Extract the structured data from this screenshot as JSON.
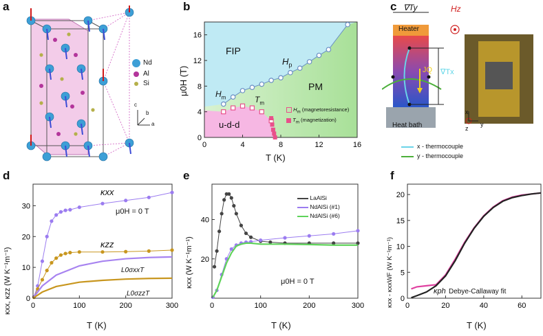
{
  "panels": {
    "a": "a",
    "b": "b",
    "c": "c",
    "d": "d",
    "e": "e",
    "f": "f"
  },
  "panel_a": {
    "legend": [
      {
        "label": "Nd",
        "color": "#3d9fd6"
      },
      {
        "label": "Al",
        "color": "#b3359b"
      },
      {
        "label": "Si",
        "color": "#b5b04a"
      }
    ],
    "axes": {
      "c": "c",
      "b": "b",
      "a": "a"
    }
  },
  "panel_b": {
    "region_labels": {
      "fip": "FIP",
      "pm": "PM",
      "udd": "u-d-d",
      "hp": "H",
      "hp_sub": "p",
      "hm": "H",
      "hm_sub": "m",
      "tm": "T",
      "tm_sub": "m"
    },
    "legend": {
      "hm": "(magnetoresistance)",
      "tm": "(magnetization)"
    },
    "xlabel": "T (K)",
    "ylabel": "μ0H (T)",
    "xticks": [
      "0",
      "4",
      "8",
      "12",
      "16"
    ],
    "yticks": [
      "0",
      "4",
      "8",
      "12",
      "16"
    ]
  },
  "panel_c": {
    "labels": {
      "gradTy": "∇Ty",
      "hz": "Hz",
      "heater": "Heater",
      "jq": "JQ",
      "gradTx": "∇Tx",
      "bath": "Heat bath",
      "x": "x",
      "y": "y",
      "z": "z"
    },
    "legend": [
      {
        "label": "x - thermocouple",
        "color": "#6ad3e8"
      },
      {
        "label": "y - thermocouple",
        "color": "#4caf3a"
      }
    ]
  },
  "panel_d": {
    "labels": {
      "kxx": "κxx",
      "kzz": "κzz",
      "field": "μ0H = 0 T",
      "l0xx": "L0σxxT",
      "l0zz": "L0σzzT"
    },
    "xlabel": "T (K)",
    "ylabel": "κxx, κzz (W K⁻¹m⁻¹)"
  },
  "panel_e": {
    "legend": [
      {
        "label": "LaAlSi",
        "color": "#444"
      },
      {
        "label": "NdAlSi (#1)",
        "color": "#9b7cf0"
      },
      {
        "label": "NdAlSi (#6)",
        "color": "#5fd35a"
      }
    ],
    "field": "μ0H = 0 T",
    "xlabel": "T (K)",
    "ylabel": "κxx (W K⁻¹m⁻¹)"
  },
  "panel_f": {
    "labels": {
      "kph": "κph",
      "fit": "Debye-Callaway fit"
    },
    "xlabel": "T (K)",
    "ylabel": "κxx - κxxWF (W K⁻¹m⁻¹)"
  },
  "chart_data": [
    {
      "type": "scatter",
      "panel": "b",
      "xlabel": "T (K)",
      "ylabel": "μ0H (T)",
      "xlim": [
        0,
        16
      ],
      "ylim": [
        0,
        18
      ],
      "series": [
        {
          "name": "Hm (magnetoresistance)",
          "marker": "open-square",
          "color": "#e8508a",
          "x": [
            2,
            3,
            4,
            5,
            6,
            7
          ],
          "y": [
            4.0,
            4.6,
            4.9,
            4.6,
            4.0,
            2.6
          ]
        },
        {
          "name": "Tm (magnetization)",
          "marker": "filled-square",
          "color": "#e8508a",
          "x": [
            7.0,
            7.1,
            7.2,
            7.3,
            7.4
          ],
          "y": [
            3,
            2,
            1.2,
            0.6,
            0
          ]
        },
        {
          "name": "Hp",
          "marker": "open-circle",
          "color": "#6a8fc4",
          "x": [
            2,
            3,
            4,
            5,
            6,
            7,
            8,
            9,
            10,
            11,
            12,
            13,
            15
          ],
          "y": [
            5.2,
            6.3,
            7.3,
            7.8,
            8.3,
            8.9,
            9.3,
            10.1,
            10.8,
            11.8,
            12.8,
            13.7,
            17.6
          ]
        }
      ]
    },
    {
      "type": "line",
      "panel": "d",
      "xlabel": "T (K)",
      "ylabel": "κxx, κzz (W K⁻¹m⁻¹)",
      "xlim": [
        0,
        300
      ],
      "ylim": [
        0,
        37
      ],
      "series": [
        {
          "name": "κxx",
          "color": "#9b7cf0",
          "x": [
            2,
            10,
            20,
            30,
            40,
            50,
            60,
            70,
            80,
            100,
            150,
            200,
            250,
            300
          ],
          "y": [
            0.5,
            4,
            12,
            20,
            25,
            27,
            28,
            28.5,
            28.7,
            29.5,
            30.7,
            31.7,
            32.7,
            34.3
          ]
        },
        {
          "name": "κzz",
          "color": "#c8961e",
          "x": [
            2,
            10,
            20,
            30,
            40,
            50,
            60,
            70,
            80,
            100,
            150,
            200,
            250,
            300
          ],
          "y": [
            0.3,
            3,
            6,
            9,
            11.5,
            13,
            14,
            14.5,
            14.8,
            15,
            15,
            15.1,
            15.3,
            15.6
          ]
        },
        {
          "name": "L0σxxT",
          "color": "#a783f0",
          "x": [
            0,
            20,
            50,
            100,
            150,
            200,
            250,
            300
          ],
          "y": [
            0,
            4,
            7.5,
            10.5,
            12,
            12.8,
            13.2,
            13.4
          ]
        },
        {
          "name": "L0σzzT",
          "color": "#c8961e",
          "x": [
            0,
            20,
            50,
            100,
            150,
            200,
            250,
            300
          ],
          "y": [
            0,
            2,
            3.8,
            5.2,
            5.8,
            6.2,
            6.4,
            6.5
          ]
        }
      ]
    },
    {
      "type": "line",
      "panel": "e",
      "xlabel": "T (K)",
      "ylabel": "κxx (W K⁻¹m⁻¹)",
      "xlim": [
        0,
        300
      ],
      "ylim": [
        0,
        58
      ],
      "series": [
        {
          "name": "LaAlSi",
          "color": "#444444",
          "x": [
            5,
            10,
            15,
            20,
            25,
            30,
            35,
            40,
            45,
            50,
            60,
            70,
            80,
            100,
            120,
            150,
            200,
            250,
            300
          ],
          "y": [
            16,
            24,
            34,
            43,
            50,
            53,
            53,
            51,
            47,
            43,
            37,
            33,
            31,
            29,
            28.5,
            28,
            28,
            28,
            28
          ]
        },
        {
          "name": "NdAlSi (#1)",
          "color": "#9b7cf0",
          "x": [
            2,
            10,
            20,
            30,
            40,
            50,
            60,
            70,
            80,
            100,
            150,
            200,
            250,
            300
          ],
          "y": [
            0.5,
            4,
            12,
            20,
            25,
            27,
            28,
            28.5,
            28.7,
            29.5,
            30.7,
            31.7,
            32.7,
            34.3
          ]
        },
        {
          "name": "NdAlSi (#6)",
          "color": "#5fd35a",
          "x": [
            2,
            10,
            20,
            30,
            40,
            50,
            60,
            70,
            80,
            100,
            150,
            200,
            250,
            300
          ],
          "y": [
            0.5,
            4,
            11,
            18,
            23,
            26.5,
            27.5,
            28,
            28,
            27.5,
            27.5,
            27.3,
            27,
            27
          ]
        }
      ]
    },
    {
      "type": "line",
      "panel": "f",
      "xlabel": "T (K)",
      "ylabel": "κxx - κxxWF (W K⁻¹m⁻¹)",
      "xlim": [
        0,
        70
      ],
      "ylim": [
        0,
        22
      ],
      "series": [
        {
          "name": "κph",
          "color": "#e040a0",
          "x": [
            2,
            5,
            10,
            15,
            20,
            25,
            30,
            35,
            40,
            45,
            50,
            55,
            60,
            65,
            70
          ],
          "y": [
            1.8,
            2.2,
            2.4,
            2.6,
            4.5,
            7.5,
            10.8,
            13.6,
            15.9,
            17.6,
            18.8,
            19.5,
            19.9,
            20.1,
            20.3
          ]
        },
        {
          "name": "Debye-Callaway fit",
          "color": "#222222",
          "x": [
            2,
            5,
            10,
            15,
            20,
            25,
            30,
            35,
            40,
            45,
            50,
            55,
            60,
            65,
            70
          ],
          "y": [
            0.1,
            0.5,
            1.2,
            2.4,
            4.3,
            7.2,
            10.6,
            13.5,
            15.8,
            17.5,
            18.7,
            19.4,
            19.8,
            20.1,
            20.3
          ]
        }
      ]
    }
  ],
  "axis_ticks": {
    "d_x": [
      "0",
      "100",
      "200",
      "300"
    ],
    "d_y": [
      "0",
      "10",
      "20",
      "30"
    ],
    "e_x": [
      "0",
      "100",
      "200",
      "300"
    ],
    "e_y": [
      "20",
      "40"
    ],
    "f_x": [
      "0",
      "20",
      "40",
      "60"
    ],
    "f_y": [
      "0",
      "5",
      "10",
      "15",
      "20"
    ]
  }
}
